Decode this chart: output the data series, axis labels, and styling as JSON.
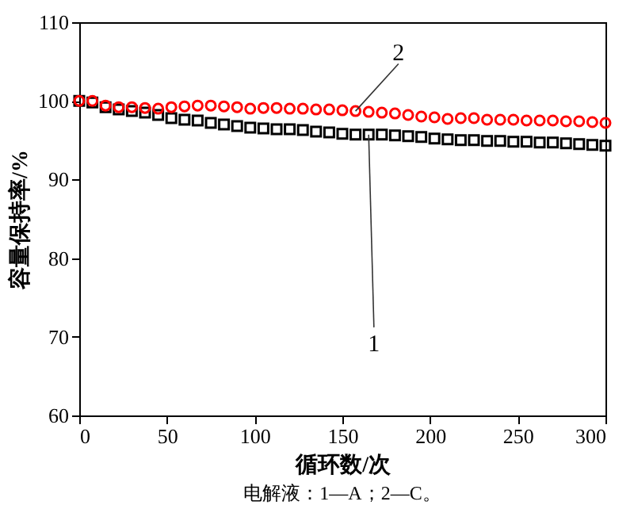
{
  "chart_data": {
    "type": "scatter",
    "xlabel": "循环数/次",
    "ylabel": "容量保持率/%",
    "x": [
      0,
      7.5,
      15,
      22.5,
      30,
      37.5,
      45,
      52.5,
      60,
      67.5,
      75,
      82.5,
      90,
      97.5,
      105,
      112.5,
      120,
      127.5,
      135,
      142.5,
      150,
      157.5,
      165,
      172.5,
      180,
      187.5,
      195,
      202.5,
      210,
      217.5,
      225,
      232.5,
      240,
      247.5,
      255,
      262.5,
      270,
      277.5,
      285,
      292.5,
      300
    ],
    "series": [
      {
        "color": "#000000",
        "marker": "square",
        "values": [
          100,
          99.8,
          99.2,
          98.9,
          98.7,
          98.5,
          98.2,
          97.8,
          97.6,
          97.5,
          97.2,
          97.0,
          96.8,
          96.6,
          96.5,
          96.4,
          96.4,
          96.3,
          96.1,
          96.0,
          95.8,
          95.7,
          95.7,
          95.7,
          95.6,
          95.5,
          95.4,
          95.2,
          95.1,
          95.0,
          95.0,
          94.9,
          94.9,
          94.8,
          94.8,
          94.7,
          94.7,
          94.6,
          94.5,
          94.4,
          94.3
        ]
      },
      {
        "color": "#ff0000",
        "marker": "circle",
        "values": [
          100,
          100,
          99.4,
          99.2,
          99.2,
          99.1,
          99.0,
          99.2,
          99.3,
          99.4,
          99.4,
          99.3,
          99.2,
          99.0,
          99.1,
          99.1,
          99.0,
          99.0,
          98.9,
          98.9,
          98.8,
          98.7,
          98.6,
          98.5,
          98.4,
          98.2,
          98.0,
          97.9,
          97.7,
          97.8,
          97.8,
          97.6,
          97.6,
          97.6,
          97.5,
          97.5,
          97.5,
          97.4,
          97.4,
          97.3,
          97.2
        ]
      }
    ],
    "xlim": [
      0,
      300
    ],
    "xticks": [
      0,
      50,
      100,
      150,
      200,
      250,
      300
    ],
    "ylim": [
      60,
      110
    ],
    "yticks": [
      60,
      70,
      80,
      90,
      100,
      110
    ],
    "grid": false,
    "annotations": [
      {
        "text": "1",
        "x": 165,
        "y": 95.7
      },
      {
        "text": "2",
        "x": 157.5,
        "y": 98.7
      },
      "电解液：1—A；2—C。"
    ]
  }
}
